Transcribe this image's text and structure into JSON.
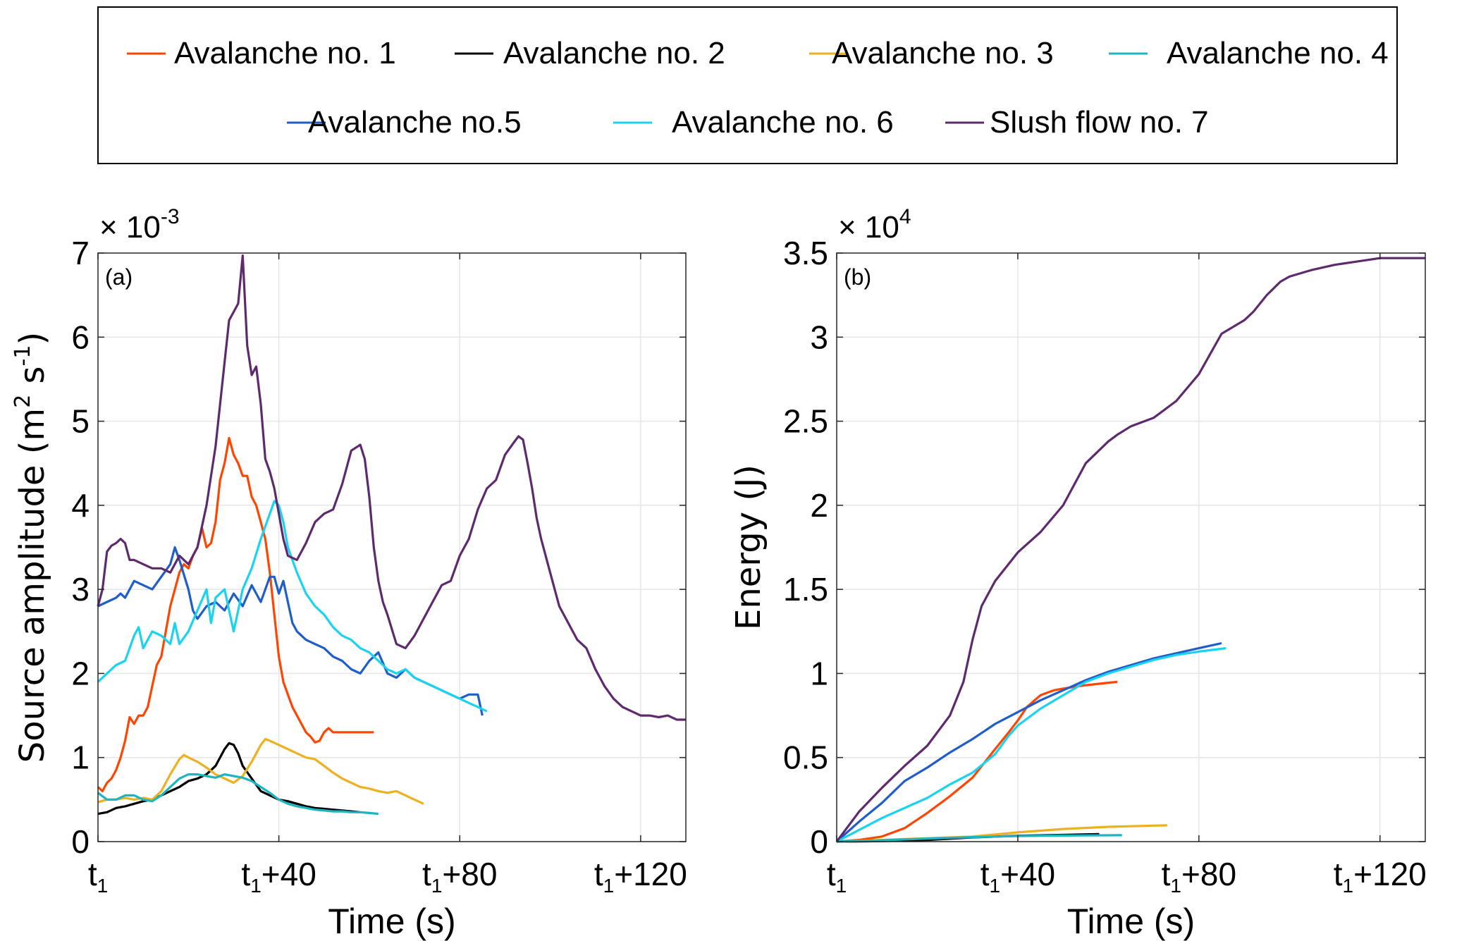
{
  "legend": {
    "items": [
      {
        "label": "Avalanche no. 1",
        "color": "#FF4500"
      },
      {
        "label": "Avalanche no. 2",
        "color": "#000000"
      },
      {
        "label": "Avalanche no. 3",
        "color": "#EDB120"
      },
      {
        "label": "Avalanche no. 4",
        "color": "#1CB5C0"
      },
      {
        "label": "Avalanche no.5",
        "color": "#1F5DC8"
      },
      {
        "label": "Avalanche no. 6",
        "color": "#19D3F0"
      },
      {
        "label": "Slush flow no. 7",
        "color": "#5E2A6E"
      }
    ]
  },
  "chart_data": [
    {
      "type": "line",
      "panel_label": "(a)",
      "xlabel": "Time (s)",
      "ylabel": "Source amplitude (m² s⁻¹)",
      "ylabel_parts": {
        "main": "Source amplitude (m",
        "sup1": "2",
        "mid": " s",
        "sup2": "-1",
        "end": ")"
      },
      "y_multiplier": {
        "base": "× 10",
        "exp": "-3"
      },
      "xlim": [
        0,
        130
      ],
      "ylim": [
        0,
        7
      ],
      "grid": true,
      "xticks": [
        0,
        40,
        80,
        120
      ],
      "xtick_labels": [
        {
          "base": "t",
          "sub": "1",
          "suffix": ""
        },
        {
          "base": "t",
          "sub": "1",
          "suffix": "+40"
        },
        {
          "base": "t",
          "sub": "1",
          "suffix": "+80"
        },
        {
          "base": "t",
          "sub": "1",
          "suffix": "+120"
        }
      ],
      "yticks": [
        0,
        1,
        2,
        3,
        4,
        5,
        6,
        7
      ],
      "ytick_labels": [
        "0",
        "1",
        "2",
        "3",
        "4",
        "5",
        "6",
        "7"
      ],
      "series": [
        {
          "name": "Avalanche no. 1",
          "x": [
            0,
            1,
            2,
            3,
            4,
            5,
            6,
            7,
            8,
            9,
            10,
            11,
            12,
            13,
            14,
            15,
            16,
            17,
            18,
            19,
            20,
            21,
            22,
            23,
            24,
            25,
            26,
            27,
            28,
            29,
            30,
            31,
            32,
            33,
            34,
            35,
            36,
            37,
            38,
            39,
            40,
            41,
            42,
            43,
            44,
            45,
            46,
            47,
            48,
            49,
            50,
            51,
            52,
            53,
            54,
            55,
            56,
            57,
            58,
            59,
            60,
            61
          ],
          "y": [
            0.65,
            0.6,
            0.7,
            0.75,
            0.85,
            1.0,
            1.2,
            1.48,
            1.4,
            1.5,
            1.5,
            1.6,
            1.85,
            2.1,
            2.2,
            2.5,
            2.8,
            3.0,
            3.2,
            3.3,
            3.25,
            3.4,
            3.5,
            3.73,
            3.5,
            3.55,
            3.8,
            4.3,
            4.5,
            4.8,
            4.6,
            4.5,
            4.35,
            4.35,
            4.1,
            4.0,
            3.8,
            3.6,
            3.2,
            2.7,
            2.2,
            1.9,
            1.75,
            1.6,
            1.5,
            1.4,
            1.3,
            1.25,
            1.18,
            1.2,
            1.3,
            1.35,
            1.3,
            1.3,
            1.3,
            1.3,
            1.3,
            1.3,
            1.3,
            1.3,
            1.3,
            1.3
          ]
        },
        {
          "name": "Avalanche no. 2",
          "x": [
            0,
            2,
            4,
            6,
            8,
            10,
            12,
            14,
            16,
            18,
            20,
            22,
            24,
            26,
            28,
            29,
            30,
            31,
            32,
            34,
            36,
            38,
            40,
            42,
            44,
            46,
            48,
            50,
            52,
            54,
            56,
            58
          ],
          "y": [
            0.33,
            0.35,
            0.4,
            0.42,
            0.45,
            0.48,
            0.5,
            0.55,
            0.6,
            0.65,
            0.72,
            0.75,
            0.8,
            0.9,
            1.1,
            1.17,
            1.15,
            1.05,
            0.9,
            0.75,
            0.6,
            0.55,
            0.5,
            0.48,
            0.45,
            0.42,
            0.4,
            0.39,
            0.38,
            0.37,
            0.36,
            0.35
          ]
        },
        {
          "name": "Avalanche no. 3",
          "x": [
            0,
            2,
            4,
            6,
            8,
            10,
            12,
            14,
            16,
            18,
            19,
            20,
            22,
            24,
            26,
            28,
            30,
            32,
            34,
            36,
            37,
            38,
            40,
            42,
            44,
            46,
            48,
            50,
            52,
            54,
            56,
            58,
            60,
            62,
            64,
            66,
            68,
            70,
            72
          ],
          "y": [
            0.47,
            0.5,
            0.5,
            0.52,
            0.5,
            0.52,
            0.5,
            0.6,
            0.8,
            0.98,
            1.03,
            1.0,
            0.95,
            0.88,
            0.8,
            0.75,
            0.7,
            0.78,
            0.95,
            1.15,
            1.22,
            1.2,
            1.15,
            1.1,
            1.05,
            1.0,
            0.98,
            0.9,
            0.82,
            0.75,
            0.7,
            0.65,
            0.63,
            0.6,
            0.58,
            0.6,
            0.55,
            0.5,
            0.45
          ]
        },
        {
          "name": "Avalanche no. 4",
          "x": [
            0,
            2,
            4,
            6,
            8,
            10,
            12,
            14,
            16,
            18,
            20,
            22,
            24,
            26,
            28,
            30,
            32,
            34,
            36,
            38,
            40,
            42,
            44,
            46,
            48,
            50,
            52,
            54,
            56,
            58,
            60,
            62
          ],
          "y": [
            0.58,
            0.5,
            0.5,
            0.55,
            0.55,
            0.5,
            0.48,
            0.55,
            0.65,
            0.75,
            0.8,
            0.8,
            0.78,
            0.76,
            0.8,
            0.78,
            0.76,
            0.72,
            0.65,
            0.58,
            0.5,
            0.45,
            0.42,
            0.4,
            0.38,
            0.37,
            0.36,
            0.36,
            0.35,
            0.35,
            0.34,
            0.33
          ]
        },
        {
          "name": "Avalanche no.5",
          "x": [
            0,
            2,
            4,
            5,
            6,
            8,
            10,
            12,
            14,
            16,
            17,
            18,
            20,
            21,
            22,
            24,
            26,
            28,
            30,
            32,
            34,
            36,
            38,
            39,
            40,
            41,
            42,
            43,
            44,
            46,
            48,
            50,
            52,
            54,
            56,
            58,
            60,
            62,
            64,
            66,
            68,
            70,
            72,
            74,
            76,
            78,
            80,
            82,
            84,
            85
          ],
          "y": [
            2.8,
            2.85,
            2.9,
            2.95,
            2.9,
            3.1,
            3.05,
            3.0,
            3.15,
            3.3,
            3.5,
            3.35,
            3.0,
            2.75,
            2.65,
            2.8,
            2.85,
            2.75,
            2.95,
            2.8,
            3.05,
            2.85,
            3.15,
            3.15,
            2.95,
            3.1,
            2.85,
            2.6,
            2.5,
            2.4,
            2.35,
            2.3,
            2.2,
            2.15,
            2.05,
            2.0,
            2.15,
            2.25,
            2.0,
            1.95,
            2.05,
            1.95,
            1.9,
            1.85,
            1.8,
            1.75,
            1.7,
            1.75,
            1.75,
            1.5
          ]
        },
        {
          "name": "Avalanche no. 6",
          "x": [
            0,
            2,
            4,
            6,
            8,
            9,
            10,
            12,
            14,
            16,
            17,
            18,
            20,
            22,
            24,
            25,
            26,
            28,
            30,
            32,
            34,
            36,
            38,
            39,
            40,
            41,
            42,
            44,
            46,
            48,
            50,
            52,
            54,
            56,
            58,
            60,
            62,
            64,
            66,
            68,
            70,
            72,
            74,
            76,
            78,
            80,
            82,
            84,
            86
          ],
          "y": [
            1.9,
            2.0,
            2.1,
            2.15,
            2.45,
            2.55,
            2.3,
            2.5,
            2.45,
            2.35,
            2.6,
            2.35,
            2.5,
            2.75,
            3.0,
            2.6,
            2.9,
            3.0,
            2.5,
            3.0,
            3.25,
            3.6,
            3.9,
            4.05,
            4.0,
            3.8,
            3.5,
            3.2,
            2.95,
            2.8,
            2.7,
            2.55,
            2.45,
            2.4,
            2.3,
            2.25,
            2.15,
            2.05,
            2.0,
            2.05,
            1.95,
            1.9,
            1.85,
            1.8,
            1.75,
            1.7,
            1.65,
            1.6,
            1.55
          ]
        },
        {
          "name": "Slush flow no. 7",
          "x": [
            0,
            1,
            2,
            3,
            4,
            5,
            6,
            7,
            8,
            10,
            12,
            14,
            16,
            18,
            20,
            22,
            24,
            26,
            28,
            29,
            30,
            31,
            32,
            33,
            34,
            35,
            36,
            37,
            38,
            39,
            40,
            41,
            42,
            44,
            46,
            48,
            50,
            52,
            54,
            56,
            58,
            59,
            60,
            61,
            62,
            63,
            64,
            66,
            68,
            70,
            72,
            74,
            76,
            78,
            80,
            82,
            84,
            86,
            88,
            90,
            92,
            93,
            94,
            95,
            96,
            97,
            98,
            100,
            102,
            104,
            106,
            108,
            110,
            112,
            114,
            116,
            118,
            120,
            122,
            124,
            126,
            128,
            130
          ],
          "y": [
            2.8,
            3.0,
            3.45,
            3.52,
            3.55,
            3.6,
            3.55,
            3.35,
            3.35,
            3.3,
            3.25,
            3.25,
            3.2,
            3.4,
            3.3,
            3.5,
            4.0,
            4.7,
            5.7,
            6.2,
            6.3,
            6.4,
            6.97,
            5.9,
            5.55,
            5.65,
            5.2,
            4.55,
            4.4,
            4.2,
            3.9,
            3.6,
            3.4,
            3.35,
            3.55,
            3.8,
            3.9,
            3.95,
            4.25,
            4.65,
            4.72,
            4.55,
            4.1,
            3.5,
            3.1,
            2.85,
            2.7,
            2.35,
            2.3,
            2.45,
            2.65,
            2.85,
            3.05,
            3.1,
            3.4,
            3.6,
            3.95,
            4.2,
            4.3,
            4.6,
            4.75,
            4.82,
            4.78,
            4.5,
            4.2,
            3.85,
            3.6,
            3.2,
            2.8,
            2.6,
            2.4,
            2.3,
            2.05,
            1.85,
            1.7,
            1.6,
            1.55,
            1.5,
            1.5,
            1.48,
            1.5,
            1.45,
            1.45
          ]
        }
      ]
    },
    {
      "type": "line",
      "panel_label": "(b)",
      "xlabel": "Time (s)",
      "ylabel": "Energy (J)",
      "y_multiplier": {
        "base": "× 10",
        "exp": "4"
      },
      "xlim": [
        0,
        130
      ],
      "ylim": [
        0,
        3.5
      ],
      "grid": true,
      "xticks": [
        0,
        40,
        80,
        120
      ],
      "xtick_labels": [
        {
          "base": "t",
          "sub": "1",
          "suffix": ""
        },
        {
          "base": "t",
          "sub": "1",
          "suffix": "+40"
        },
        {
          "base": "t",
          "sub": "1",
          "suffix": "+80"
        },
        {
          "base": "t",
          "sub": "1",
          "suffix": "+120"
        }
      ],
      "yticks": [
        0,
        0.5,
        1,
        1.5,
        2,
        2.5,
        3,
        3.5
      ],
      "ytick_labels": [
        "0",
        "0.5",
        "1",
        "1.5",
        "2",
        "2.5",
        "3",
        "3.5"
      ],
      "series": [
        {
          "name": "Avalanche no. 1",
          "x": [
            0,
            5,
            10,
            15,
            20,
            25,
            30,
            35,
            38,
            40,
            42,
            45,
            48,
            50,
            55,
            60,
            62
          ],
          "y": [
            0,
            0.01,
            0.03,
            0.08,
            0.17,
            0.27,
            0.38,
            0.55,
            0.65,
            0.72,
            0.8,
            0.87,
            0.9,
            0.91,
            0.93,
            0.945,
            0.95
          ]
        },
        {
          "name": "Avalanche no. 2",
          "x": [
            0,
            10,
            20,
            30,
            40,
            50,
            58
          ],
          "y": [
            0,
            0.003,
            0.01,
            0.025,
            0.035,
            0.04,
            0.045
          ]
        },
        {
          "name": "Avalanche no. 3",
          "x": [
            0,
            10,
            20,
            30,
            40,
            50,
            60,
            70,
            73
          ],
          "y": [
            0,
            0.01,
            0.02,
            0.03,
            0.055,
            0.075,
            0.088,
            0.095,
            0.097
          ]
        },
        {
          "name": "Avalanche no. 4",
          "x": [
            0,
            10,
            20,
            30,
            40,
            50,
            63
          ],
          "y": [
            0,
            0.008,
            0.018,
            0.027,
            0.033,
            0.036,
            0.038
          ]
        },
        {
          "name": "Avalanche no.5",
          "x": [
            0,
            5,
            10,
            15,
            20,
            25,
            30,
            35,
            40,
            45,
            50,
            55,
            60,
            65,
            70,
            75,
            80,
            85
          ],
          "y": [
            0,
            0.12,
            0.23,
            0.36,
            0.44,
            0.53,
            0.61,
            0.7,
            0.77,
            0.84,
            0.9,
            0.96,
            1.01,
            1.05,
            1.09,
            1.12,
            1.15,
            1.18
          ]
        },
        {
          "name": "Avalanche no. 6",
          "x": [
            0,
            5,
            10,
            15,
            20,
            25,
            30,
            35,
            38,
            40,
            45,
            50,
            55,
            60,
            65,
            70,
            75,
            80,
            86
          ],
          "y": [
            0,
            0.07,
            0.14,
            0.2,
            0.26,
            0.34,
            0.41,
            0.52,
            0.63,
            0.69,
            0.79,
            0.87,
            0.95,
            1.0,
            1.04,
            1.08,
            1.11,
            1.13,
            1.15
          ]
        },
        {
          "name": "Slush flow no. 7",
          "x": [
            0,
            5,
            10,
            15,
            20,
            25,
            28,
            30,
            32,
            35,
            40,
            45,
            50,
            55,
            60,
            62,
            65,
            70,
            75,
            80,
            85,
            90,
            92,
            95,
            98,
            100,
            105,
            110,
            115,
            120,
            125,
            130
          ],
          "y": [
            0,
            0.18,
            0.32,
            0.45,
            0.57,
            0.75,
            0.95,
            1.2,
            1.4,
            1.55,
            1.72,
            1.84,
            2.0,
            2.25,
            2.38,
            2.42,
            2.47,
            2.52,
            2.62,
            2.78,
            3.02,
            3.1,
            3.15,
            3.25,
            3.33,
            3.36,
            3.4,
            3.43,
            3.45,
            3.47,
            3.47,
            3.47
          ]
        }
      ]
    }
  ]
}
